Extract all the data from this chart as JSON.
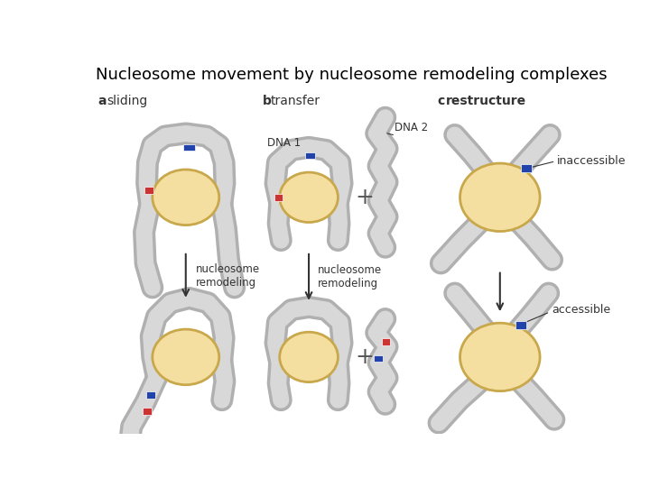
{
  "title": "Nucleosome movement by nucleosome remodeling complexes",
  "title_fontsize": 13,
  "bg_color": "#ffffff",
  "label_fontsize": 10,
  "nuc_fill": "#f5dfa0",
  "nuc_edge": "#c8a84b",
  "dna_fill": "#d8d8d8",
  "dna_edge": "#b0b0b0",
  "red_mark": "#cc3333",
  "blue_mark": "#2244aa",
  "arrow_color": "#333333",
  "text_color": "#333333",
  "plus_color": "#555555",
  "inaccessible_label": "inaccessible",
  "accessible_label": "accessible",
  "nuc_remodeling": "nucleosome\nremodeling",
  "dna1_label": "DNA 1",
  "dna2_label": "DNA 2"
}
